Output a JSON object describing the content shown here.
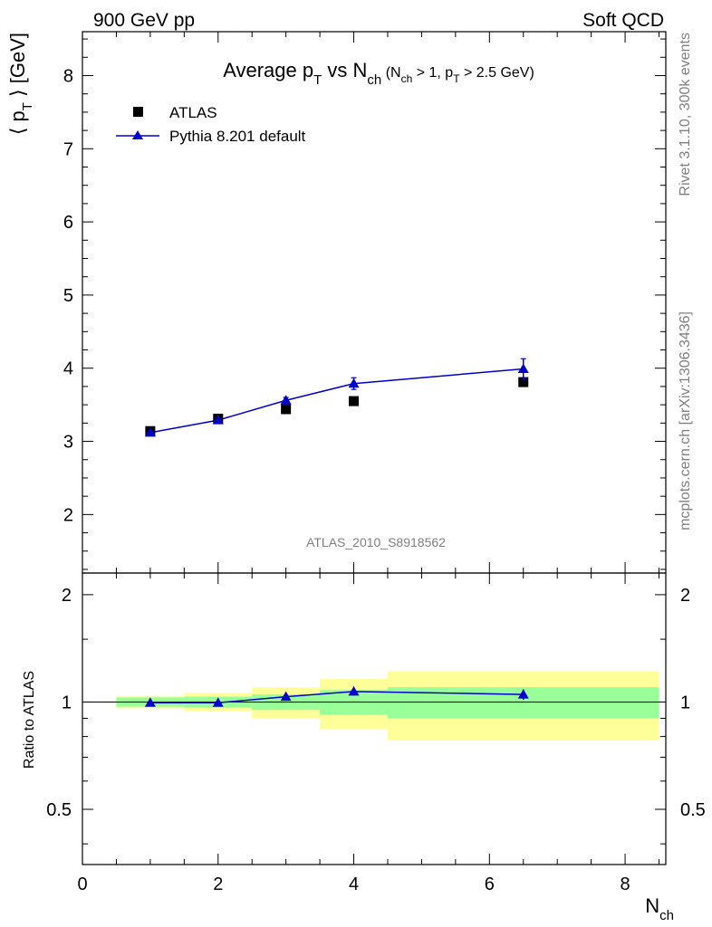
{
  "header": {
    "left": "900 GeV pp",
    "right": "Soft QCD"
  },
  "side_text": {
    "top": "Rivet 3.1.10,  300k events",
    "bottom": "mcplots.cern.ch [arXiv:1306.3436]"
  },
  "watermark": "ATLAS_2010_S8918562",
  "colors": {
    "mc": "#0000cc",
    "band_stat": "#99ff99",
    "band_total": "#ffff99",
    "data": "#000000"
  },
  "chart_data": {
    "type": "scatter",
    "title": {
      "main": "Average p",
      "main_sub": "T",
      "mid": " vs N",
      "mid_sub": "ch",
      "cut_open": " (N",
      "cut_sub1": "ch",
      "cut_mid": " > 1, p",
      "cut_sub2": "T",
      "cut_close": " > 2.5 GeV)"
    },
    "ylabel": {
      "open": "⟨ p",
      "sub": "T",
      "close": " ⟩  [GeV]"
    },
    "xlabel": {
      "main": "N",
      "sub": "ch"
    },
    "ratio_ylabel": "Ratio to ATLAS",
    "xlim": [
      0,
      8.6
    ],
    "ylim": [
      1.2,
      8.6
    ],
    "ratio_ylim": [
      0.35,
      2.3
    ],
    "ratio_log": true,
    "x_ticks": [
      "0",
      "2",
      "4",
      "6",
      "8"
    ],
    "y_ticks": [
      "2",
      "3",
      "4",
      "5",
      "6",
      "7",
      "8"
    ],
    "ratio_ticks": [
      "0.5",
      "1",
      "2"
    ],
    "legend_position": "top-left",
    "series": [
      {
        "name": "ATLAS",
        "marker": "square",
        "x": [
          1,
          2,
          3,
          4,
          6.5
        ],
        "y": [
          3.14,
          3.31,
          3.44,
          3.55,
          3.81
        ],
        "bins": [
          [
            0.5,
            1.5
          ],
          [
            1.5,
            2.5
          ],
          [
            2.5,
            3.5
          ],
          [
            3.5,
            4.5
          ],
          [
            4.5,
            8.5
          ]
        ],
        "ratio_band_stat": [
          0.03,
          0.035,
          0.05,
          0.08,
          0.1
        ],
        "ratio_band_total": [
          0.04,
          0.06,
          0.1,
          0.16,
          0.22
        ]
      },
      {
        "name": "Pythia 8.201 default",
        "marker": "triangle",
        "x": [
          1,
          2,
          3,
          4,
          6.5
        ],
        "y": [
          3.12,
          3.29,
          3.56,
          3.79,
          3.99
        ],
        "yerr": [
          0.02,
          0.03,
          0.04,
          0.08,
          0.14
        ],
        "ratio": [
          0.995,
          0.995,
          1.035,
          1.07,
          1.05
        ],
        "ratio_err": [
          0.008,
          0.01,
          0.012,
          0.025,
          0.035
        ]
      }
    ]
  }
}
